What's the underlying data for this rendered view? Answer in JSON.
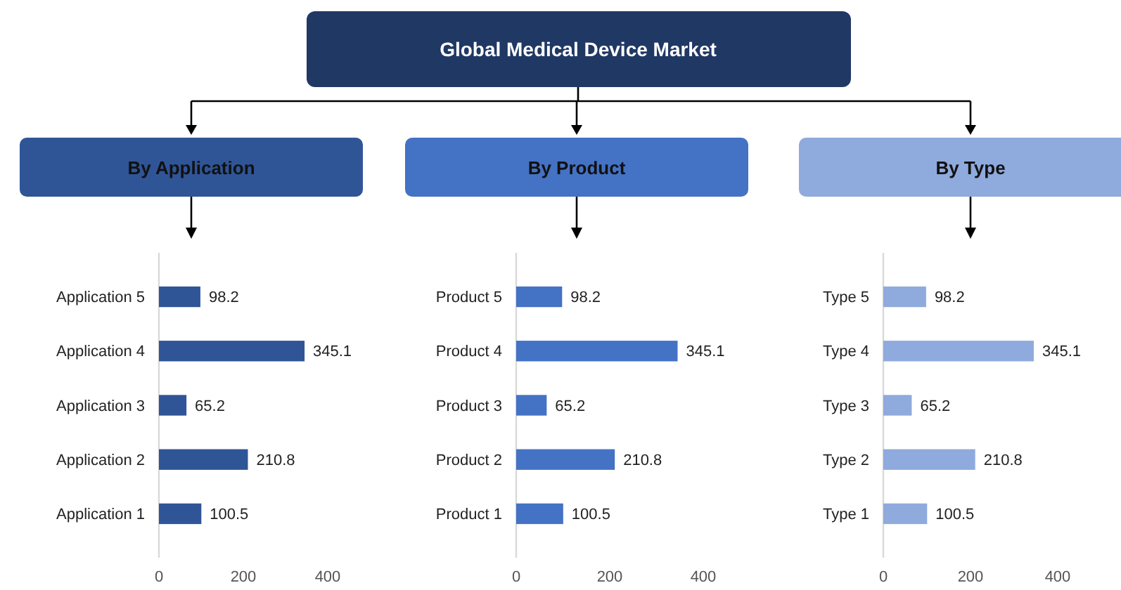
{
  "chart_data": [
    {
      "type": "other",
      "title": "Global Medical Device Market"
    },
    {
      "type": "bar",
      "title": "By Application",
      "orientation": "horizontal",
      "categories": [
        "Application 5",
        "Application 4",
        "Application 3",
        "Application 2",
        "Application 1"
      ],
      "series": [
        {
          "color": "#2f5597",
          "values": [
            98.2,
            345.1,
            65.2,
            210.8,
            100.5
          ]
        }
      ],
      "xlim": [
        0,
        400
      ],
      "xticks": [
        0,
        200,
        400
      ],
      "data_labels": true
    },
    {
      "type": "bar",
      "title": "By Product",
      "orientation": "horizontal",
      "categories": [
        "Product 5",
        "Product 4",
        "Product 3",
        "Product 2",
        "Product 1"
      ],
      "series": [
        {
          "color": "#4472c4",
          "values": [
            98.2,
            345.1,
            65.2,
            210.8,
            100.5
          ]
        }
      ],
      "xlim": [
        0,
        400
      ],
      "xticks": [
        0,
        200,
        400
      ],
      "data_labels": true
    },
    {
      "type": "bar",
      "title": "By Type",
      "orientation": "horizontal",
      "categories": [
        "Type 5",
        "Type 4",
        "Type 3",
        "Type 2",
        "Type 1"
      ],
      "series": [
        {
          "color": "#8faadc",
          "values": [
            98.2,
            345.1,
            65.2,
            210.8,
            100.5
          ]
        }
      ],
      "xlim": [
        0,
        400
      ],
      "xticks": [
        0,
        200,
        400
      ],
      "data_labels": true
    }
  ]
}
